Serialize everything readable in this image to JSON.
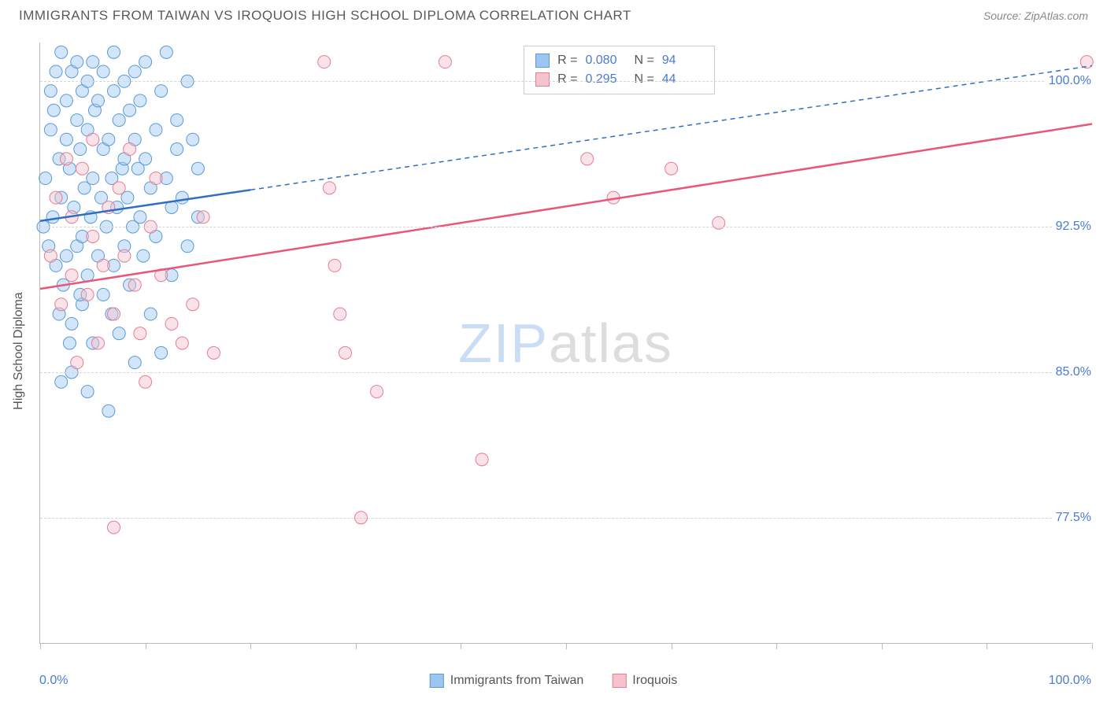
{
  "header": {
    "title": "IMMIGRANTS FROM TAIWAN VS IROQUOIS HIGH SCHOOL DIPLOMA CORRELATION CHART",
    "source_label": "Source: ",
    "source_value": "ZipAtlas.com"
  },
  "axes": {
    "ylabel": "High School Diploma",
    "xmin_label": "0.0%",
    "xmax_label": "100.0%",
    "xlim": [
      0,
      100
    ],
    "ylim": [
      71,
      102
    ],
    "ytick_values": [
      77.5,
      85.0,
      92.5,
      100.0
    ],
    "ytick_labels": [
      "77.5%",
      "85.0%",
      "92.5%",
      "100.0%"
    ],
    "xtick_values": [
      0,
      10,
      20,
      30,
      40,
      50,
      60,
      70,
      80,
      90,
      100
    ],
    "grid_color": "#d5d5d5",
    "border_color": "#bbbbbb",
    "tick_label_color": "#4a7bd0",
    "label_fontsize": 16
  },
  "watermark": {
    "part1": "ZIP",
    "part2": "atlas"
  },
  "legend": {
    "series1_label": "Immigrants from Taiwan",
    "series2_label": "Iroquois"
  },
  "stats": {
    "rows": [
      {
        "r_label": "R =",
        "r_value": "0.080",
        "n_label": "N =",
        "n_value": "94"
      },
      {
        "r_label": "R =",
        "r_value": "0.295",
        "n_label": "N =",
        "n_value": "44"
      }
    ]
  },
  "chart": {
    "type": "scatter",
    "background_color": "#ffffff",
    "marker_radius": 8,
    "marker_opacity": 0.45,
    "series": [
      {
        "name": "Immigrants from Taiwan",
        "fill_color": "#9ec5f0",
        "stroke_color": "#5a9bd5",
        "line_color": "#2f6fc3",
        "line_width": 2.5,
        "regression_solid_xmax": 20,
        "regression": {
          "x1": 0,
          "y1": 92.8,
          "x2": 100,
          "y2": 100.8
        },
        "points": [
          [
            0.3,
            92.5
          ],
          [
            0.5,
            95.0
          ],
          [
            0.8,
            91.5
          ],
          [
            1.0,
            97.5
          ],
          [
            1.0,
            99.5
          ],
          [
            1.2,
            93.0
          ],
          [
            1.3,
            98.5
          ],
          [
            1.5,
            90.5
          ],
          [
            1.5,
            100.5
          ],
          [
            1.8,
            96.0
          ],
          [
            2.0,
            94.0
          ],
          [
            2.0,
            101.5
          ],
          [
            2.2,
            89.5
          ],
          [
            2.5,
            97.0
          ],
          [
            2.5,
            99.0
          ],
          [
            2.5,
            91.0
          ],
          [
            2.8,
            95.5
          ],
          [
            3.0,
            100.5
          ],
          [
            3.0,
            87.5
          ],
          [
            3.2,
            93.5
          ],
          [
            3.5,
            98.0
          ],
          [
            3.5,
            91.5
          ],
          [
            3.5,
            101.0
          ],
          [
            3.8,
            96.5
          ],
          [
            4.0,
            99.5
          ],
          [
            4.0,
            88.5
          ],
          [
            4.0,
            92.0
          ],
          [
            4.2,
            94.5
          ],
          [
            4.5,
            100.0
          ],
          [
            4.5,
            90.0
          ],
          [
            4.5,
            97.5
          ],
          [
            4.8,
            93.0
          ],
          [
            5.0,
            95.0
          ],
          [
            5.0,
            101.0
          ],
          [
            5.0,
            86.5
          ],
          [
            5.2,
            98.5
          ],
          [
            5.5,
            91.0
          ],
          [
            5.5,
            99.0
          ],
          [
            5.8,
            94.0
          ],
          [
            6.0,
            96.5
          ],
          [
            6.0,
            100.5
          ],
          [
            6.0,
            89.0
          ],
          [
            6.3,
            92.5
          ],
          [
            6.5,
            97.0
          ],
          [
            6.5,
            83.0
          ],
          [
            6.8,
            95.0
          ],
          [
            7.0,
            99.5
          ],
          [
            7.0,
            90.5
          ],
          [
            7.0,
            101.5
          ],
          [
            7.3,
            93.5
          ],
          [
            7.5,
            98.0
          ],
          [
            7.5,
            87.0
          ],
          [
            7.8,
            95.5
          ],
          [
            8.0,
            91.5
          ],
          [
            8.0,
            100.0
          ],
          [
            8.0,
            96.0
          ],
          [
            8.3,
            94.0
          ],
          [
            8.5,
            98.5
          ],
          [
            8.5,
            89.5
          ],
          [
            8.8,
            92.5
          ],
          [
            9.0,
            97.0
          ],
          [
            9.0,
            100.5
          ],
          [
            9.0,
            85.5
          ],
          [
            9.3,
            95.5
          ],
          [
            9.5,
            93.0
          ],
          [
            9.5,
            99.0
          ],
          [
            9.8,
            91.0
          ],
          [
            10.0,
            96.0
          ],
          [
            10.0,
            101.0
          ],
          [
            10.5,
            94.5
          ],
          [
            10.5,
            88.0
          ],
          [
            11.0,
            97.5
          ],
          [
            11.0,
            92.0
          ],
          [
            11.5,
            99.5
          ],
          [
            11.5,
            86.0
          ],
          [
            12.0,
            95.0
          ],
          [
            12.0,
            101.5
          ],
          [
            12.5,
            93.5
          ],
          [
            12.5,
            90.0
          ],
          [
            13.0,
            98.0
          ],
          [
            13.0,
            96.5
          ],
          [
            13.5,
            94.0
          ],
          [
            14.0,
            100.0
          ],
          [
            14.0,
            91.5
          ],
          [
            14.5,
            97.0
          ],
          [
            15.0,
            95.5
          ],
          [
            15.0,
            93.0
          ],
          [
            2.0,
            84.5
          ],
          [
            3.0,
            85.0
          ],
          [
            4.5,
            84.0
          ],
          [
            1.8,
            88.0
          ],
          [
            2.8,
            86.5
          ],
          [
            6.8,
            88.0
          ],
          [
            3.8,
            89.0
          ]
        ]
      },
      {
        "name": "Iroquois",
        "fill_color": "#f5c2cd",
        "stroke_color": "#e77c92",
        "line_color": "#e8567a",
        "line_width": 2.5,
        "regression": {
          "x1": 0,
          "y1": 89.3,
          "x2": 100,
          "y2": 97.8
        },
        "points": [
          [
            1.0,
            91.0
          ],
          [
            1.5,
            94.0
          ],
          [
            2.0,
            88.5
          ],
          [
            2.5,
            96.0
          ],
          [
            3.0,
            90.0
          ],
          [
            3.0,
            93.0
          ],
          [
            3.5,
            85.5
          ],
          [
            4.0,
            95.5
          ],
          [
            4.5,
            89.0
          ],
          [
            5.0,
            92.0
          ],
          [
            5.0,
            97.0
          ],
          [
            5.5,
            86.5
          ],
          [
            6.0,
            90.5
          ],
          [
            6.5,
            93.5
          ],
          [
            7.0,
            88.0
          ],
          [
            7.5,
            94.5
          ],
          [
            8.0,
            91.0
          ],
          [
            8.5,
            96.5
          ],
          [
            9.0,
            89.5
          ],
          [
            9.5,
            87.0
          ],
          [
            10.0,
            84.5
          ],
          [
            10.5,
            92.5
          ],
          [
            11.0,
            95.0
          ],
          [
            11.5,
            90.0
          ],
          [
            12.5,
            87.5
          ],
          [
            13.5,
            86.5
          ],
          [
            14.5,
            88.5
          ],
          [
            15.5,
            93.0
          ],
          [
            16.5,
            86.0
          ],
          [
            7.0,
            77.0
          ],
          [
            27.0,
            101.0
          ],
          [
            27.5,
            94.5
          ],
          [
            28.0,
            90.5
          ],
          [
            28.5,
            88.0
          ],
          [
            29.0,
            86.0
          ],
          [
            30.5,
            77.5
          ],
          [
            32.0,
            84.0
          ],
          [
            38.5,
            101.0
          ],
          [
            42.0,
            80.5
          ],
          [
            52.0,
            96.0
          ],
          [
            54.5,
            94.0
          ],
          [
            60.0,
            95.5
          ],
          [
            64.5,
            92.7
          ],
          [
            99.5,
            101.0
          ]
        ]
      }
    ]
  }
}
